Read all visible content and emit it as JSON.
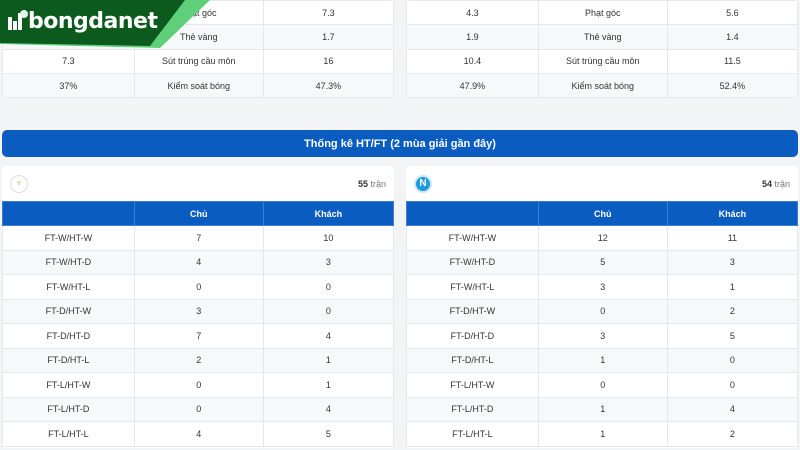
{
  "brand": {
    "name": "bongdanet",
    "dark_green": "#0d5a1f",
    "light_green": "#5fcf7a"
  },
  "stats_left": [
    [
      "",
      "Phạt góc",
      "7.3"
    ],
    [
      "",
      "Thẻ vàng",
      "1.7"
    ],
    [
      "7.3",
      "Sút trúng cầu môn",
      "16"
    ],
    [
      "37%",
      "Kiểm soát bóng",
      "47.3%"
    ]
  ],
  "stats_right": [
    [
      "4.3",
      "Phạt góc",
      "5.6"
    ],
    [
      "1.9",
      "Thẻ vàng",
      "1.4"
    ],
    [
      "10.4",
      "Sút trúng cầu môn",
      "11.5"
    ],
    [
      "47.9%",
      "Kiểm soát bóng",
      "52.4%"
    ]
  ],
  "banner": "Thống kê HT/FT (2 mùa giải gần đây)",
  "accent": "#0b5cc1",
  "teams": [
    {
      "crest": "lazio-crest-icon",
      "count": "55",
      "count_unit": "trận",
      "headers": [
        "",
        "Chủ",
        "Khách"
      ],
      "rows": [
        [
          "FT-W/HT-W",
          "7",
          "10"
        ],
        [
          "FT-W/HT-D",
          "4",
          "3"
        ],
        [
          "FT-W/HT-L",
          "0",
          "0"
        ],
        [
          "FT-D/HT-W",
          "3",
          "0"
        ],
        [
          "FT-D/HT-D",
          "7",
          "4"
        ],
        [
          "FT-D/HT-L",
          "2",
          "1"
        ],
        [
          "FT-L/HT-W",
          "0",
          "1"
        ],
        [
          "FT-L/HT-D",
          "0",
          "4"
        ],
        [
          "FT-L/HT-L",
          "4",
          "5"
        ]
      ]
    },
    {
      "crest": "napoli-crest-icon",
      "crest_letter": "N",
      "count": "54",
      "count_unit": "trận",
      "headers": [
        "",
        "Chủ",
        "Khách"
      ],
      "rows": [
        [
          "FT-W/HT-W",
          "12",
          "11"
        ],
        [
          "FT-W/HT-D",
          "5",
          "3"
        ],
        [
          "FT-W/HT-L",
          "3",
          "1"
        ],
        [
          "FT-D/HT-W",
          "0",
          "2"
        ],
        [
          "FT-D/HT-D",
          "3",
          "5"
        ],
        [
          "FT-D/HT-L",
          "1",
          "0"
        ],
        [
          "FT-L/HT-W",
          "0",
          "0"
        ],
        [
          "FT-L/HT-D",
          "1",
          "4"
        ],
        [
          "FT-L/HT-L",
          "1",
          "2"
        ]
      ]
    }
  ]
}
